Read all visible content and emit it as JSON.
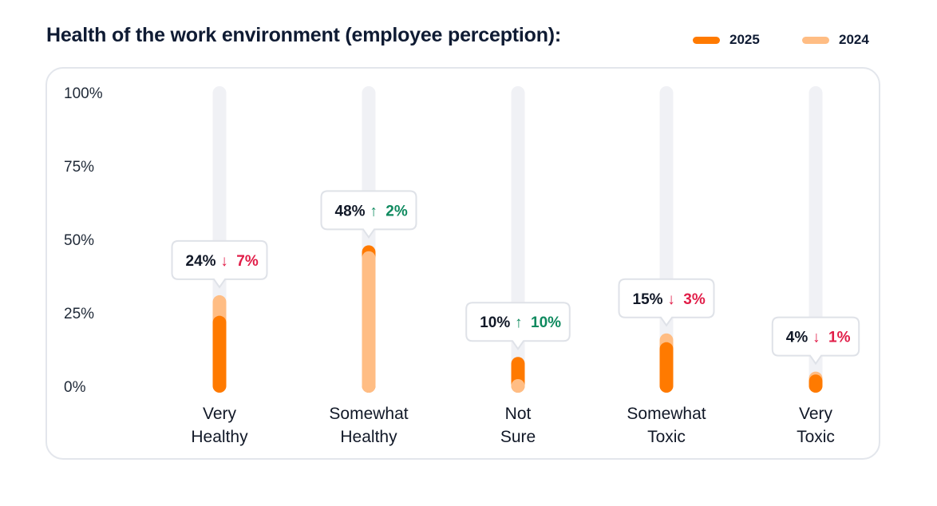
{
  "header": {
    "title": "Health of the work environment (employee perception):"
  },
  "colors": {
    "series_2025": "#ff7a00",
    "series_2024": "#ffbd84",
    "track": "#f0f1f5",
    "up": "#0f8a5f",
    "down": "#e11d48"
  },
  "chart_data": {
    "type": "bar",
    "title": "Health of the work environment (employee perception):",
    "xlabel": "",
    "ylabel": "",
    "ylim": [
      0,
      100
    ],
    "yticks": [
      "100%",
      "75%",
      "50%",
      "25%",
      "0%"
    ],
    "ytick_values": [
      100,
      75,
      50,
      25,
      0
    ],
    "legend": [
      "2025",
      "2024"
    ],
    "legend_position": "top-right",
    "categories": [
      [
        "Very",
        "Healthy"
      ],
      [
        "Somewhat",
        "Healthy"
      ],
      [
        "Not",
        "Sure"
      ],
      [
        "Somewhat",
        "Toxic"
      ],
      [
        "Very",
        "Toxic"
      ]
    ],
    "series": [
      {
        "name": "2025",
        "values": [
          24,
          48,
          10,
          15,
          4
        ]
      },
      {
        "name": "2024",
        "values": [
          31,
          46,
          0,
          18,
          5
        ]
      }
    ],
    "callouts": [
      {
        "value": "24%",
        "arrow": "↓",
        "delta": "7%",
        "direction": "down"
      },
      {
        "value": "48%",
        "arrow": "↑",
        "delta": "2%",
        "direction": "up"
      },
      {
        "value": "10%",
        "arrow": "↑",
        "delta": "10%",
        "direction": "up"
      },
      {
        "value": "15%",
        "arrow": "↓",
        "delta": "3%",
        "direction": "down"
      },
      {
        "value": "4%",
        "arrow": "↓",
        "delta": "1%",
        "direction": "down"
      }
    ]
  }
}
